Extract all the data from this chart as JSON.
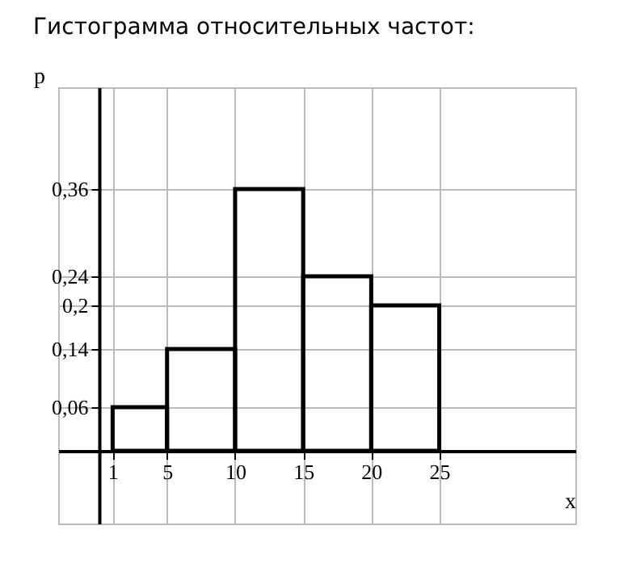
{
  "chart_data": {
    "type": "histogram",
    "title": "Гистограмма относительных частот:",
    "xlabel": "x",
    "ylabel": "p",
    "bins": [
      1,
      5,
      10,
      15,
      20,
      25
    ],
    "values": [
      0.06,
      0.14,
      0.36,
      0.24,
      0.2
    ],
    "color": "#000000",
    "xlim": [
      -3,
      35
    ],
    "xticks": [
      1,
      5,
      10,
      15,
      20,
      25
    ],
    "ylim": [
      -0.1,
      0.5
    ],
    "yticks": [
      {
        "value": 0.06,
        "label": "0,06"
      },
      {
        "value": 0.14,
        "label": "0,14"
      },
      {
        "value": 0.2,
        "label": "0,2"
      },
      {
        "value": 0.24,
        "label": "0,24"
      },
      {
        "value": 0.36,
        "label": "0,36"
      }
    ],
    "grid": true
  }
}
